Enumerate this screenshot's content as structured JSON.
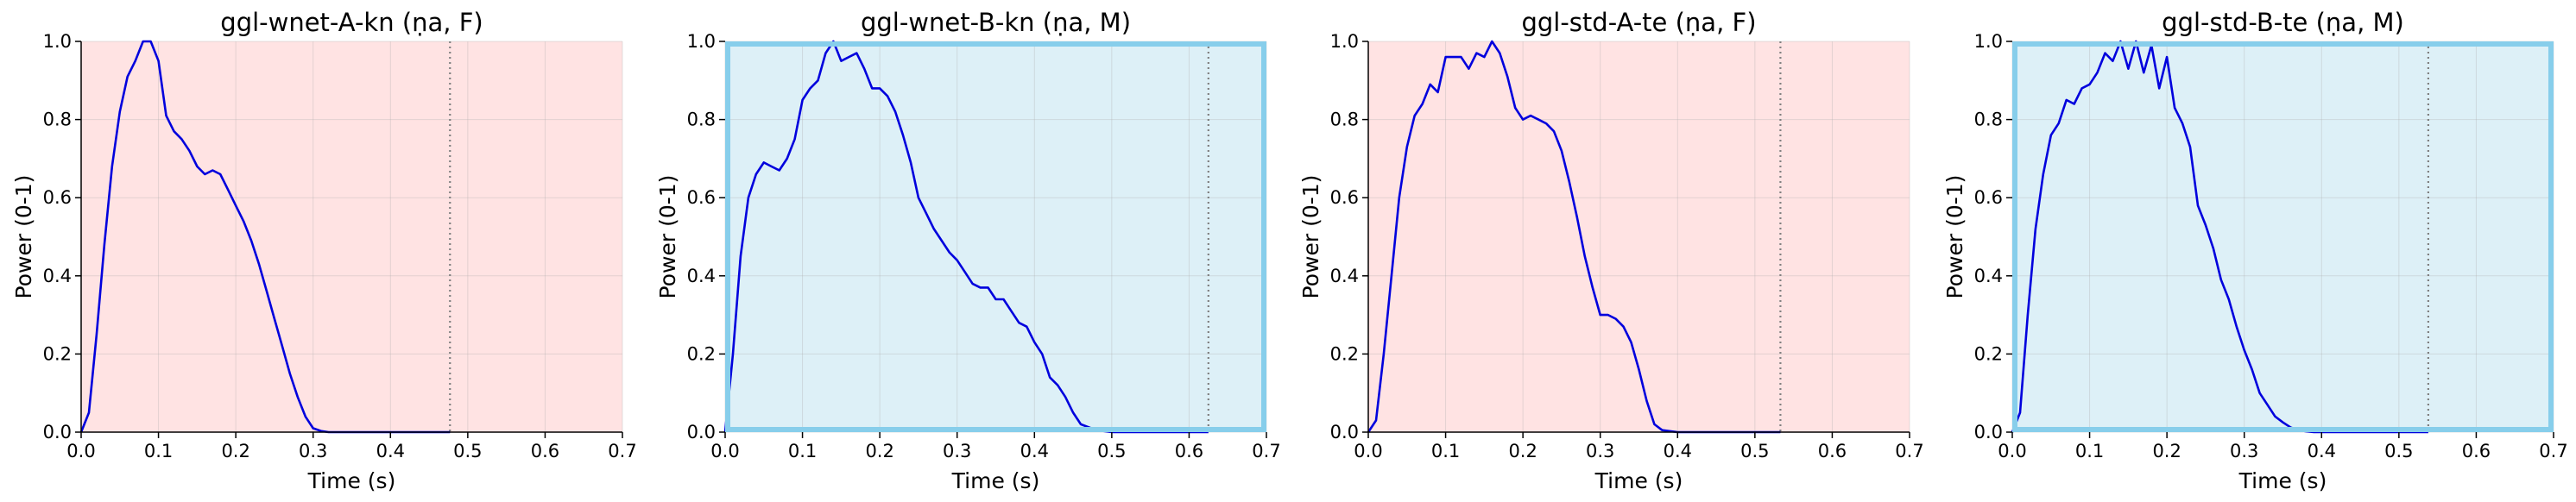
{
  "chart_data": [
    {
      "type": "line",
      "title": "ggl-wnet-A-kn (ṇa, F)",
      "xlabel": "Time (s)",
      "ylabel": "Power (0-1)",
      "xlim": [
        0,
        0.7
      ],
      "ylim": [
        0,
        1.0
      ],
      "xticks": [
        "0.0",
        "0.1",
        "0.2",
        "0.3",
        "0.4",
        "0.5",
        "0.6",
        "0.7"
      ],
      "yticks": [
        "0.0",
        "0.2",
        "0.4",
        "0.6",
        "0.8",
        "1.0"
      ],
      "grid": true,
      "background_color": "#ffe3e3",
      "border_highlight": false,
      "line_color": "#0000dd",
      "end_marker_x": 0.477,
      "series": [
        {
          "x": [
            0.0,
            0.01,
            0.02,
            0.03,
            0.04,
            0.05,
            0.06,
            0.07,
            0.08,
            0.09,
            0.1,
            0.11,
            0.12,
            0.13,
            0.14,
            0.15,
            0.16,
            0.17,
            0.18,
            0.19,
            0.2,
            0.21,
            0.22,
            0.23,
            0.24,
            0.25,
            0.26,
            0.27,
            0.28,
            0.29,
            0.3,
            0.31,
            0.32,
            0.34,
            0.36,
            0.38,
            0.4,
            0.42,
            0.44,
            0.46,
            0.477
          ],
          "y": [
            0.0,
            0.05,
            0.25,
            0.48,
            0.68,
            0.82,
            0.91,
            0.95,
            1.0,
            1.0,
            0.95,
            0.81,
            0.77,
            0.75,
            0.72,
            0.68,
            0.66,
            0.67,
            0.66,
            0.62,
            0.58,
            0.54,
            0.49,
            0.43,
            0.36,
            0.29,
            0.22,
            0.15,
            0.09,
            0.04,
            0.01,
            0.003,
            0.0,
            0.0,
            0.0,
            0.0,
            0.0,
            0.0,
            0.0,
            0.0,
            0.0
          ]
        }
      ]
    },
    {
      "type": "line",
      "title": "ggl-wnet-B-kn (ṇa, M)",
      "xlabel": "Time (s)",
      "ylabel": "Power (0-1)",
      "xlim": [
        0,
        0.7
      ],
      "ylim": [
        0,
        1.0
      ],
      "xticks": [
        "0.0",
        "0.1",
        "0.2",
        "0.3",
        "0.4",
        "0.5",
        "0.6",
        "0.7"
      ],
      "yticks": [
        "0.0",
        "0.2",
        "0.4",
        "0.6",
        "0.8",
        "1.0"
      ],
      "grid": true,
      "background_color": "#ddf0f7",
      "border_highlight": true,
      "border_color": "#87ceeb",
      "line_color": "#0000dd",
      "end_marker_x": 0.625,
      "series": [
        {
          "x": [
            0.0,
            0.01,
            0.02,
            0.03,
            0.04,
            0.05,
            0.06,
            0.07,
            0.08,
            0.09,
            0.1,
            0.11,
            0.12,
            0.13,
            0.14,
            0.15,
            0.16,
            0.17,
            0.18,
            0.19,
            0.2,
            0.21,
            0.22,
            0.23,
            0.24,
            0.25,
            0.26,
            0.27,
            0.28,
            0.29,
            0.3,
            0.31,
            0.32,
            0.33,
            0.34,
            0.35,
            0.36,
            0.37,
            0.38,
            0.39,
            0.4,
            0.41,
            0.42,
            0.43,
            0.44,
            0.45,
            0.46,
            0.48,
            0.5,
            0.55,
            0.6,
            0.625
          ],
          "y": [
            0.0,
            0.2,
            0.45,
            0.6,
            0.66,
            0.69,
            0.68,
            0.67,
            0.7,
            0.75,
            0.85,
            0.88,
            0.9,
            0.97,
            1.0,
            0.95,
            0.96,
            0.97,
            0.93,
            0.88,
            0.88,
            0.86,
            0.82,
            0.76,
            0.69,
            0.6,
            0.56,
            0.52,
            0.49,
            0.46,
            0.44,
            0.41,
            0.38,
            0.37,
            0.37,
            0.34,
            0.34,
            0.31,
            0.28,
            0.27,
            0.23,
            0.2,
            0.14,
            0.12,
            0.09,
            0.05,
            0.02,
            0.005,
            0.0,
            0.0,
            0.0,
            0.0
          ]
        }
      ]
    },
    {
      "type": "line",
      "title": "ggl-std-A-te (ṇa, F)",
      "xlabel": "Time (s)",
      "ylabel": "Power (0-1)",
      "xlim": [
        0,
        0.7
      ],
      "ylim": [
        0,
        1.0
      ],
      "xticks": [
        "0.0",
        "0.1",
        "0.2",
        "0.3",
        "0.4",
        "0.5",
        "0.6",
        "0.7"
      ],
      "yticks": [
        "0.0",
        "0.2",
        "0.4",
        "0.6",
        "0.8",
        "1.0"
      ],
      "grid": true,
      "background_color": "#ffe3e3",
      "border_highlight": false,
      "line_color": "#0000dd",
      "end_marker_x": 0.533,
      "series": [
        {
          "x": [
            0.0,
            0.01,
            0.02,
            0.03,
            0.04,
            0.05,
            0.06,
            0.07,
            0.08,
            0.09,
            0.1,
            0.11,
            0.12,
            0.13,
            0.14,
            0.15,
            0.16,
            0.17,
            0.18,
            0.19,
            0.2,
            0.21,
            0.22,
            0.23,
            0.24,
            0.25,
            0.26,
            0.27,
            0.28,
            0.29,
            0.3,
            0.31,
            0.32,
            0.33,
            0.34,
            0.35,
            0.36,
            0.37,
            0.38,
            0.4,
            0.42,
            0.45,
            0.5,
            0.533
          ],
          "y": [
            0.0,
            0.03,
            0.2,
            0.4,
            0.6,
            0.73,
            0.81,
            0.84,
            0.89,
            0.87,
            0.96,
            0.96,
            0.96,
            0.93,
            0.97,
            0.96,
            1.0,
            0.97,
            0.91,
            0.83,
            0.8,
            0.81,
            0.8,
            0.79,
            0.77,
            0.72,
            0.64,
            0.55,
            0.45,
            0.37,
            0.3,
            0.3,
            0.29,
            0.27,
            0.23,
            0.16,
            0.08,
            0.02,
            0.005,
            0.0,
            0.0,
            0.0,
            0.0,
            0.0
          ]
        }
      ]
    },
    {
      "type": "line",
      "title": "ggl-std-B-te (ṇa, M)",
      "xlabel": "Time (s)",
      "ylabel": "Power (0-1)",
      "xlim": [
        0,
        0.7
      ],
      "ylim": [
        0,
        1.0
      ],
      "xticks": [
        "0.0",
        "0.1",
        "0.2",
        "0.3",
        "0.4",
        "0.5",
        "0.6",
        "0.7"
      ],
      "yticks": [
        "0.0",
        "0.2",
        "0.4",
        "0.6",
        "0.8",
        "1.0"
      ],
      "grid": true,
      "background_color": "#ddf0f7",
      "border_highlight": true,
      "border_color": "#87ceeb",
      "line_color": "#0000dd",
      "end_marker_x": 0.538,
      "series": [
        {
          "x": [
            0.0,
            0.01,
            0.02,
            0.03,
            0.04,
            0.05,
            0.06,
            0.07,
            0.08,
            0.09,
            0.1,
            0.11,
            0.12,
            0.13,
            0.14,
            0.15,
            0.16,
            0.17,
            0.18,
            0.19,
            0.2,
            0.21,
            0.22,
            0.23,
            0.24,
            0.25,
            0.26,
            0.27,
            0.28,
            0.29,
            0.3,
            0.31,
            0.32,
            0.33,
            0.34,
            0.35,
            0.36,
            0.37,
            0.38,
            0.39,
            0.4,
            0.45,
            0.5,
            0.538
          ],
          "y": [
            0.0,
            0.05,
            0.3,
            0.52,
            0.66,
            0.76,
            0.79,
            0.85,
            0.84,
            0.88,
            0.89,
            0.92,
            0.97,
            0.95,
            1.0,
            0.93,
            1.0,
            0.92,
            0.99,
            0.88,
            0.96,
            0.83,
            0.79,
            0.73,
            0.58,
            0.53,
            0.47,
            0.39,
            0.34,
            0.27,
            0.21,
            0.16,
            0.1,
            0.07,
            0.04,
            0.025,
            0.012,
            0.005,
            0.002,
            0.0,
            0.0,
            0.0,
            0.0,
            0.0
          ]
        }
      ]
    }
  ]
}
